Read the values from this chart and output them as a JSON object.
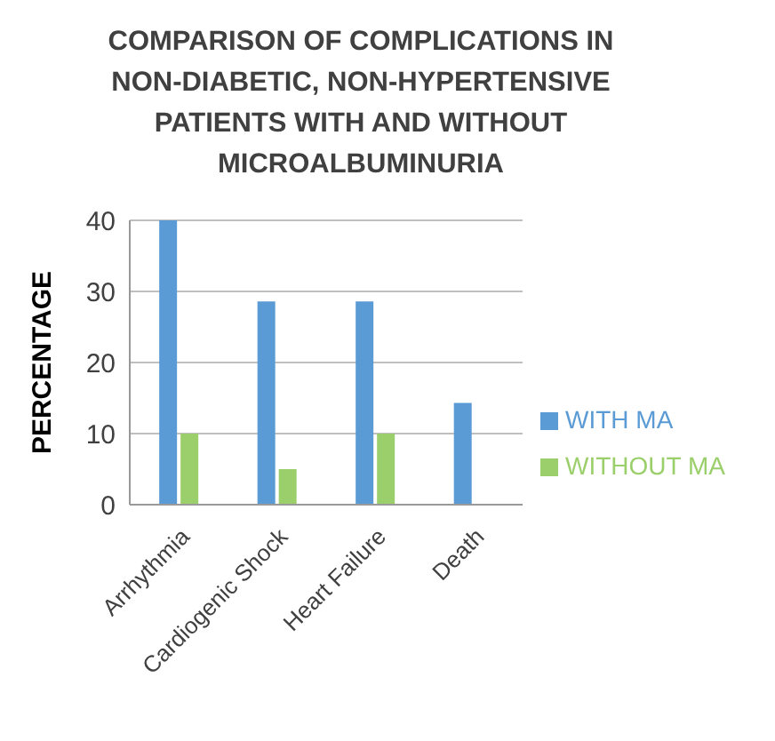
{
  "chart_data": {
    "type": "bar",
    "title": "COMPARISON OF COMPLICATIONS IN NON-DIABETIC, NON-HYPERTENSIVE PATIENTS WITH AND WITHOUT MICROALBUMINURIA",
    "ylabel": "PERCENTAGE",
    "categories": [
      "Arrhythmia",
      "Cardiogenic Shock",
      "Heart Failure",
      "Death"
    ],
    "series": [
      {
        "name": "WITH MA",
        "color": "#5b9bd5",
        "values": [
          40,
          28.6,
          28.6,
          14.3
        ]
      },
      {
        "name": "WITHOUT MA",
        "color": "#9bcf6b",
        "values": [
          10,
          5,
          10,
          0
        ]
      }
    ],
    "ylim": [
      0,
      40
    ],
    "yticks": [
      0,
      10,
      20,
      30,
      40
    ],
    "grid": "y",
    "legend": "right"
  }
}
